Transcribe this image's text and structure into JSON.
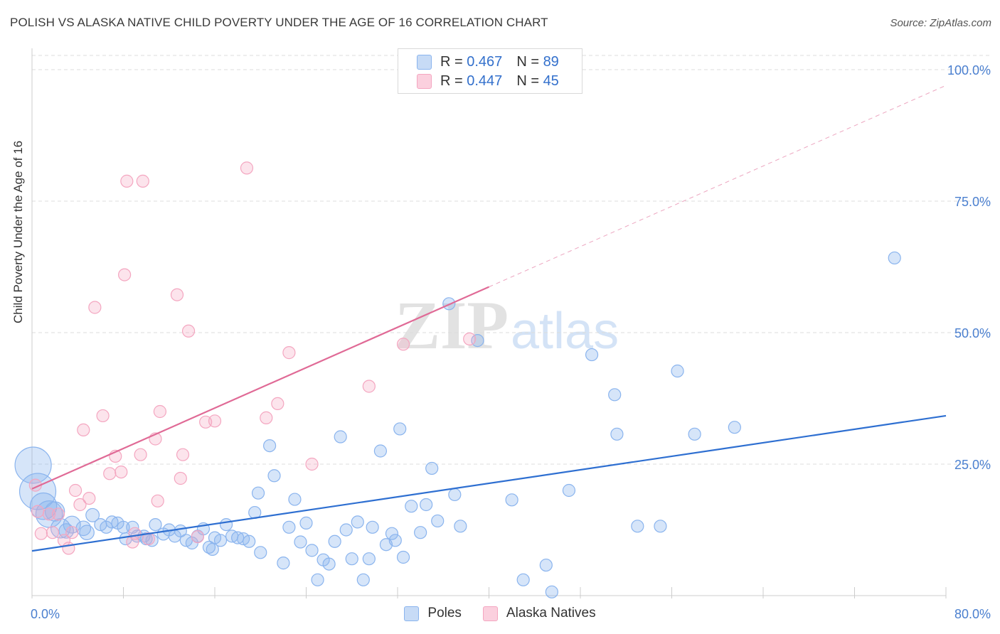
{
  "title": "POLISH VS ALASKA NATIVE CHILD POVERTY UNDER THE AGE OF 16 CORRELATION CHART",
  "source": "Source: ZipAtlas.com",
  "watermark": {
    "zip": "ZIP",
    "atlas": "atlas"
  },
  "legend": {
    "r_label": "R =",
    "n_label": "N =",
    "series": [
      {
        "r": "0.467",
        "n": "89"
      },
      {
        "r": "0.447",
        "n": "45"
      }
    ]
  },
  "chart_data": {
    "type": "scatter",
    "title": "POLISH VS ALASKA NATIVE CHILD POVERTY UNDER THE AGE OF 16 CORRELATION CHART",
    "xlabel": "",
    "ylabel": "Child Poverty Under the Age of 16",
    "xlim": [
      0,
      80
    ],
    "ylim": [
      0,
      100
    ],
    "x_tick_labels": [
      "0.0%",
      "80.0%"
    ],
    "y_tick_labels": [
      "25.0%",
      "50.0%",
      "75.0%",
      "100.0%"
    ],
    "y_ticks": [
      25,
      50,
      75,
      100
    ],
    "grid": true,
    "legend_position": "top-center",
    "series": [
      {
        "name": "Poles",
        "color": "#8ab4ee",
        "line_color": "#2e6fd1",
        "trend": {
          "x0": 0,
          "y0": 8.5,
          "x1": 80,
          "y1": 34.2
        },
        "points": [
          [
            0.1,
            24.8,
            3
          ],
          [
            0.5,
            19.8,
            3
          ],
          [
            1,
            17,
            2.2
          ],
          [
            1.5,
            15.5,
            2.2
          ],
          [
            2,
            16,
            1.6
          ],
          [
            2.5,
            12.8,
            1.6
          ],
          [
            3.5,
            13.5,
            1.4
          ],
          [
            4.5,
            12.8,
            1.2
          ],
          [
            4.8,
            12,
            1.2
          ],
          [
            3,
            12.3,
            1.2
          ],
          [
            5.3,
            15.3,
            1.1
          ],
          [
            6,
            13.5,
            1
          ],
          [
            6.5,
            13,
            1
          ],
          [
            7,
            14,
            1
          ],
          [
            7.5,
            13.8,
            1
          ],
          [
            8,
            13,
            1
          ],
          [
            8.2,
            10.8,
            1
          ],
          [
            8.8,
            13,
            1
          ],
          [
            9.2,
            11.3,
            1
          ],
          [
            9.8,
            11.3,
            1
          ],
          [
            10,
            10.8,
            1
          ],
          [
            10.5,
            10.5,
            1
          ],
          [
            10.8,
            13.5,
            1
          ],
          [
            11.5,
            11.7,
            1
          ],
          [
            12,
            12.5,
            1
          ],
          [
            12.5,
            11.3,
            1
          ],
          [
            13,
            12.3,
            1
          ],
          [
            13.5,
            10.5,
            1
          ],
          [
            14,
            10,
            1
          ],
          [
            14.5,
            11.3,
            1
          ],
          [
            15,
            12.7,
            1
          ],
          [
            15.5,
            9.2,
            1
          ],
          [
            15.8,
            8.8,
            1
          ],
          [
            16,
            11,
            1
          ],
          [
            16.5,
            10.5,
            1
          ],
          [
            17,
            13.5,
            1
          ],
          [
            17.5,
            11.3,
            1
          ],
          [
            18,
            11,
            1
          ],
          [
            18.5,
            10.8,
            1
          ],
          [
            19,
            10.3,
            1
          ],
          [
            19.5,
            15.8,
            1
          ],
          [
            20,
            8.2,
            1
          ],
          [
            19.8,
            19.5,
            1
          ],
          [
            20.8,
            28.5,
            1
          ],
          [
            21.2,
            22.8,
            1
          ],
          [
            22,
            6.2,
            1
          ],
          [
            22.5,
            13,
            1
          ],
          [
            23,
            18.3,
            1
          ],
          [
            23.5,
            10.2,
            1
          ],
          [
            24,
            13.8,
            1
          ],
          [
            24.5,
            8.6,
            1
          ],
          [
            25,
            3,
            1
          ],
          [
            25.5,
            6.8,
            1
          ],
          [
            26,
            6,
            1
          ],
          [
            26.5,
            10.3,
            1
          ],
          [
            27,
            30.2,
            1
          ],
          [
            27.5,
            12.5,
            1
          ],
          [
            28,
            7,
            1
          ],
          [
            28.5,
            14,
            1
          ],
          [
            29,
            3,
            1
          ],
          [
            29.5,
            7,
            1
          ],
          [
            29.8,
            13,
            1
          ],
          [
            30.5,
            27.5,
            1
          ],
          [
            31,
            9.7,
            1
          ],
          [
            31.5,
            11.8,
            1
          ],
          [
            31.8,
            10.5,
            1
          ],
          [
            32.2,
            31.7,
            1
          ],
          [
            32.5,
            7.3,
            1
          ],
          [
            33.2,
            17,
            1
          ],
          [
            34,
            12,
            1
          ],
          [
            34.5,
            17.3,
            1
          ],
          [
            35,
            24.2,
            1
          ],
          [
            35.5,
            14.2,
            1
          ],
          [
            36.5,
            55.5,
            1
          ],
          [
            37,
            19.2,
            1
          ],
          [
            37.5,
            13.2,
            1
          ],
          [
            39,
            48.5,
            1
          ],
          [
            42,
            18.2,
            1
          ],
          [
            43,
            3,
            1
          ],
          [
            45,
            5.8,
            1
          ],
          [
            45.5,
            0.7,
            1
          ],
          [
            47,
            20,
            1
          ],
          [
            49,
            45.8,
            1
          ],
          [
            51,
            38.2,
            1
          ],
          [
            51.2,
            30.7,
            1
          ],
          [
            53,
            13.2,
            1
          ],
          [
            55,
            13.2,
            1
          ],
          [
            56.5,
            42.7,
            1
          ],
          [
            58,
            30.7,
            1
          ],
          [
            61.5,
            32,
            1
          ],
          [
            75.5,
            64.2,
            1
          ]
        ]
      },
      {
        "name": "Alaska Natives",
        "color": "#f4a6c0",
        "line_color": "#e06a96",
        "trend": {
          "x0": 0,
          "y0": 20.3,
          "x1": 40,
          "y1": 58.7,
          "extend_to": {
            "x": 80,
            "y": 97
          }
        },
        "points": [
          [
            0.3,
            21,
            1
          ],
          [
            0.5,
            16,
            1
          ],
          [
            0.8,
            11.8,
            1
          ],
          [
            1.5,
            15.5,
            1
          ],
          [
            1.8,
            12,
            1
          ],
          [
            2.3,
            15.5,
            1
          ],
          [
            2.8,
            10.5,
            1
          ],
          [
            3.2,
            9,
            1
          ],
          [
            3.5,
            12,
            1
          ],
          [
            3.8,
            20,
            1
          ],
          [
            4.2,
            17.3,
            1
          ],
          [
            4.5,
            31.5,
            1
          ],
          [
            5,
            18.5,
            1
          ],
          [
            5.5,
            54.8,
            1
          ],
          [
            6.2,
            34.2,
            1
          ],
          [
            6.8,
            23.2,
            1
          ],
          [
            7.3,
            26.5,
            1
          ],
          [
            7.8,
            23.5,
            1
          ],
          [
            8.1,
            61,
            1
          ],
          [
            8.3,
            78.8,
            1
          ],
          [
            8.8,
            10.2,
            1
          ],
          [
            9,
            11.8,
            1
          ],
          [
            9.5,
            26.8,
            1
          ],
          [
            9.7,
            78.8,
            1
          ],
          [
            10.2,
            10.8,
            1
          ],
          [
            10.8,
            29.8,
            1
          ],
          [
            11,
            18,
            1
          ],
          [
            11.2,
            35,
            1
          ],
          [
            12.7,
            57.2,
            1
          ],
          [
            13,
            22.3,
            1
          ],
          [
            13.2,
            26.8,
            1
          ],
          [
            13.7,
            50.3,
            1
          ],
          [
            14.5,
            11.2,
            1
          ],
          [
            15.2,
            33,
            1
          ],
          [
            16,
            33.2,
            1
          ],
          [
            18.8,
            81.3,
            1
          ],
          [
            20.5,
            33.8,
            1
          ],
          [
            21.5,
            36.5,
            1
          ],
          [
            22.5,
            46.2,
            1
          ],
          [
            24.5,
            25,
            1
          ],
          [
            29.5,
            39.8,
            1
          ],
          [
            32.5,
            47.8,
            1
          ],
          [
            38.3,
            48.8,
            1
          ]
        ]
      }
    ]
  }
}
